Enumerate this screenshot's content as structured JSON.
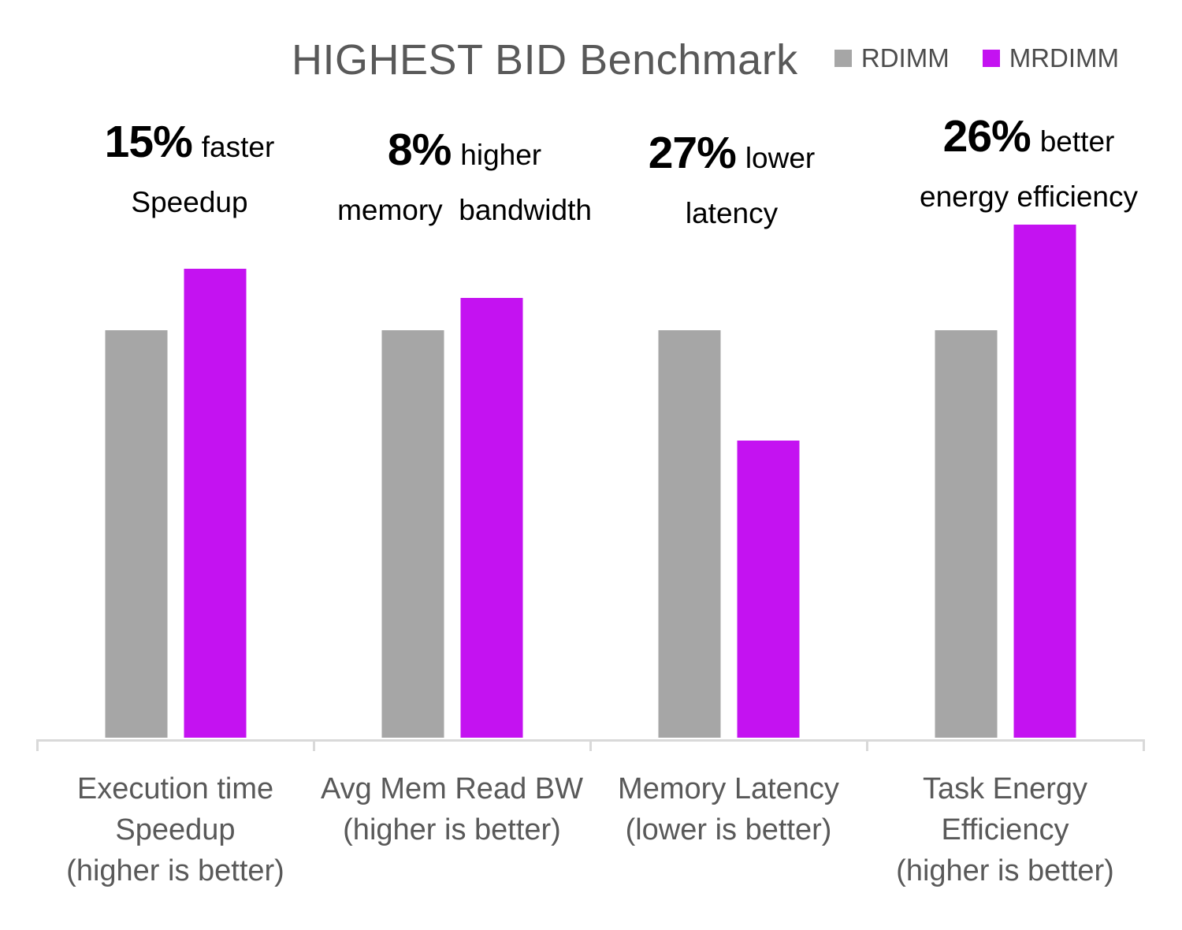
{
  "chart_data": {
    "type": "bar",
    "title": "HIGHEST BID Benchmark",
    "legend_position": "top-right",
    "grid": false,
    "y_axis_visible": false,
    "value_basis": "bar heights relative to RDIMM = 1.00",
    "ylim": [
      0,
      1.35
    ],
    "categories": [
      {
        "label_lines": [
          "Execution time",
          "Speedup",
          "(higher is better)"
        ]
      },
      {
        "label_lines": [
          "Avg Mem Read BW",
          "(higher is better)"
        ]
      },
      {
        "label_lines": [
          "Memory Latency",
          "(lower is better)"
        ]
      },
      {
        "label_lines": [
          "Task Energy",
          "Efficiency",
          "(higher is better)"
        ]
      }
    ],
    "series": [
      {
        "name": "RDIMM",
        "color": "#A6A6A6",
        "values": [
          1.0,
          1.0,
          1.0,
          1.0
        ]
      },
      {
        "name": "MRDIMM",
        "color": "#C412F1",
        "values": [
          1.15,
          1.08,
          0.73,
          1.26
        ]
      }
    ],
    "annotations": [
      {
        "percent": "15%",
        "qualifier": "faster",
        "line2": "Speedup"
      },
      {
        "percent": "8%",
        "qualifier": "higher",
        "line2": "memory  bandwidth"
      },
      {
        "percent": "27%",
        "qualifier": "lower",
        "line2": "latency"
      },
      {
        "percent": "26%",
        "qualifier": "better",
        "line2": "energy efficiency"
      }
    ],
    "colors": {
      "axis_line": "#D9D9D9",
      "title_text": "#595959",
      "category_label_text": "#595959",
      "annotation_text": "#000000",
      "legend_text": "#4D4D4D"
    }
  }
}
